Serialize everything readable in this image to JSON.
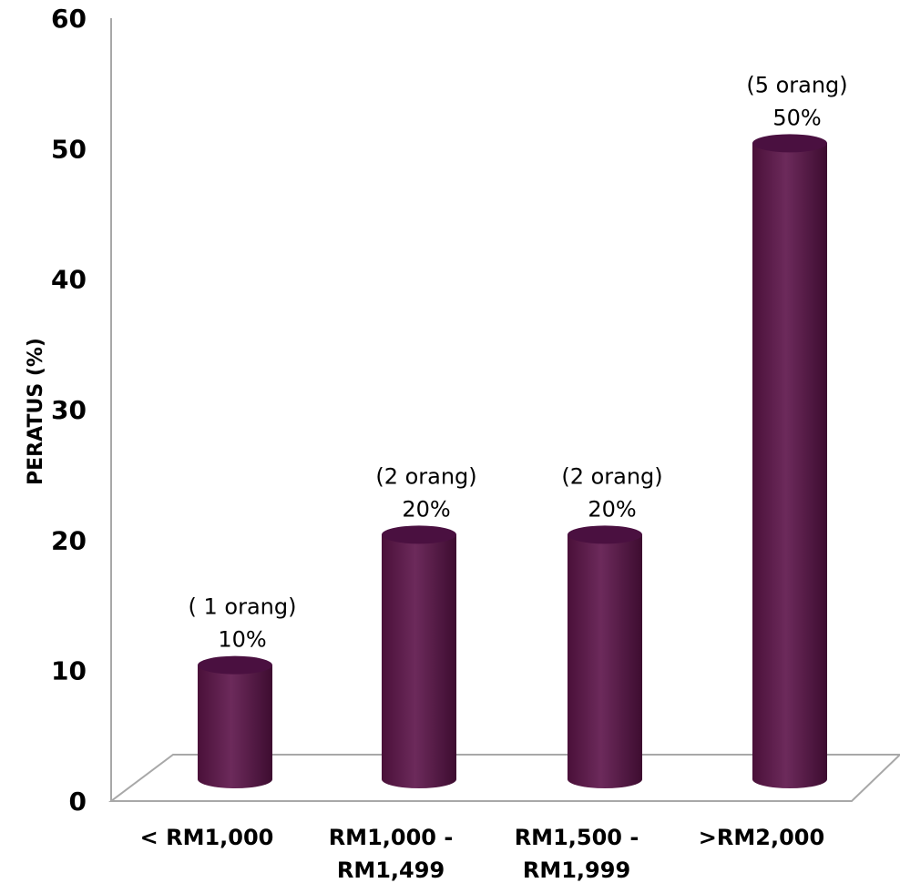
{
  "chart_data": {
    "type": "bar",
    "style": "3d-cylinder",
    "categories": [
      [
        "< RM1,000"
      ],
      [
        "RM1,000 -",
        "RM1,499"
      ],
      [
        "RM1,500 -",
        "RM1,999"
      ],
      [
        ">RM2,000"
      ]
    ],
    "values": [
      10,
      20,
      20,
      50
    ],
    "data_labels": [
      {
        "count": "( 1 orang)",
        "percent": "10%"
      },
      {
        "count": "(2 orang)",
        "percent": "20%"
      },
      {
        "count": "(2 orang)",
        "percent": "20%"
      },
      {
        "count": "(5 orang)",
        "percent": "50%"
      }
    ],
    "title": "",
    "xlabel": "",
    "ylabel": "PERATUS (%)",
    "ylim": [
      0,
      60
    ],
    "yticks": [
      "0",
      "10",
      "20",
      "30",
      "40",
      "50",
      "60"
    ],
    "grid": false,
    "legend": "none",
    "bar_color": "#5e1f4c"
  }
}
